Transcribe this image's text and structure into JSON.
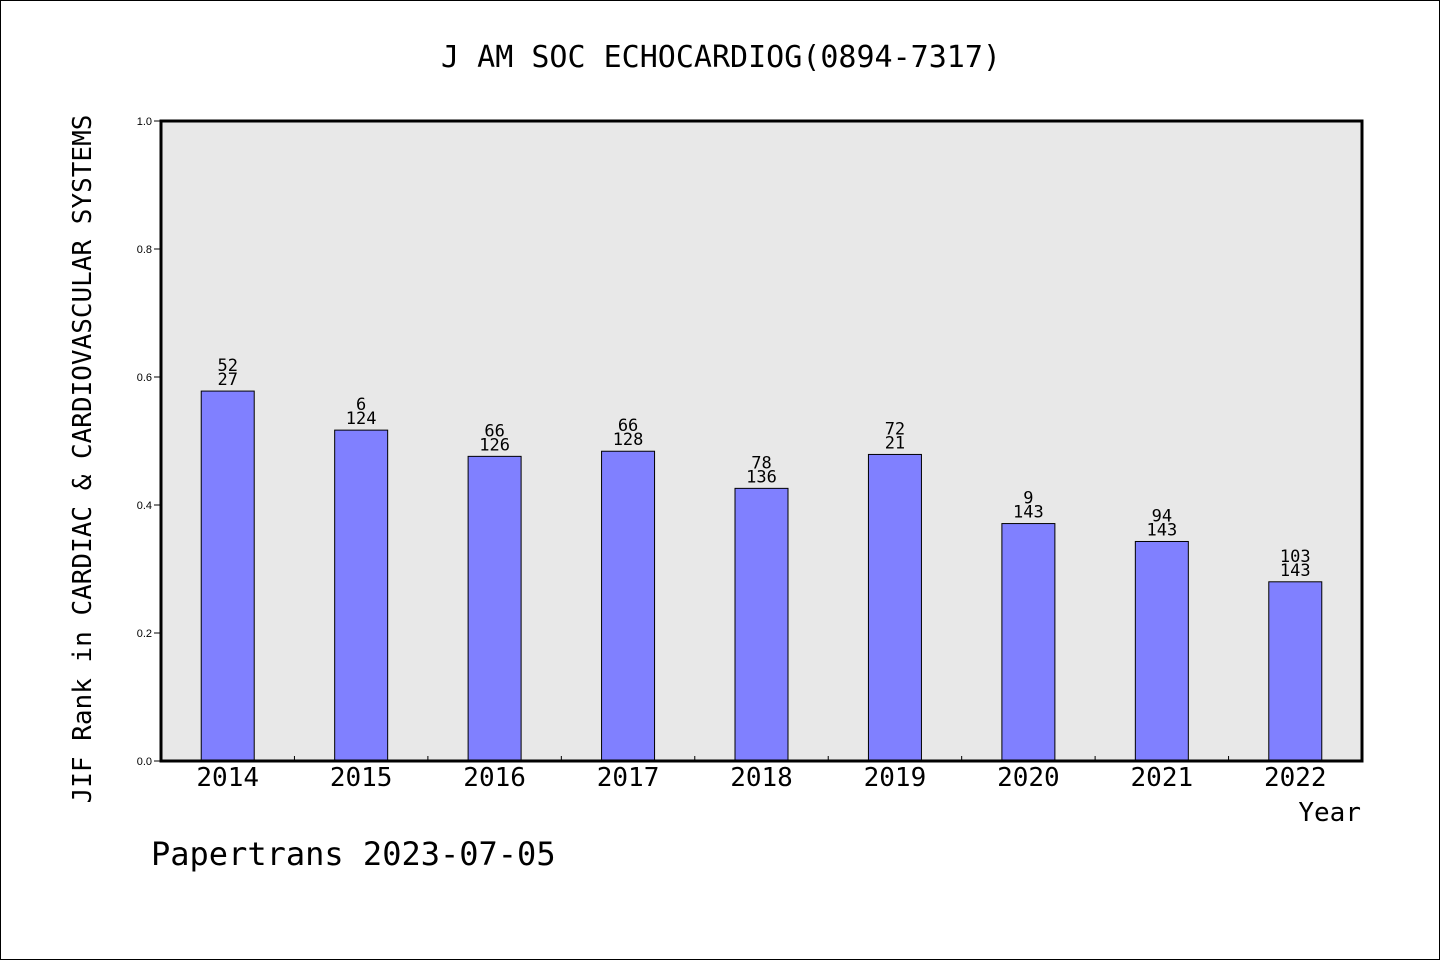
{
  "chart_data": {
    "type": "bar",
    "title": "J AM SOC ECHOCARDIOG(0894-7317)",
    "xlabel": "Year",
    "ylabel": "JIF Rank in CARDIAC & CARDIOVASCULAR SYSTEMS",
    "ylim": [
      0.0,
      1.0
    ],
    "yticks": [
      "0.0",
      "0.2",
      "0.4",
      "0.6",
      "0.8",
      "1.0"
    ],
    "categories": [
      "2014",
      "2015",
      "2016",
      "2017",
      "2018",
      "2019",
      "2020",
      "2021",
      "2022"
    ],
    "values": [
      0.578,
      0.517,
      0.476,
      0.484,
      0.426,
      0.479,
      0.371,
      0.343,
      0.28
    ],
    "rank_labels": [
      "52",
      "6",
      "66",
      "66",
      "78",
      "72",
      "9",
      "94",
      "103"
    ],
    "total_labels": [
      "27",
      "124",
      "126",
      "128",
      "136",
      "21",
      "143",
      "143",
      "143"
    ],
    "grid": false,
    "colors": {
      "bar_fill": "#8080ff",
      "bar_stroke": "#000000",
      "plot_background": "#e8e8e8"
    }
  },
  "footer": {
    "credit": "Papertrans 2023-07-05"
  }
}
